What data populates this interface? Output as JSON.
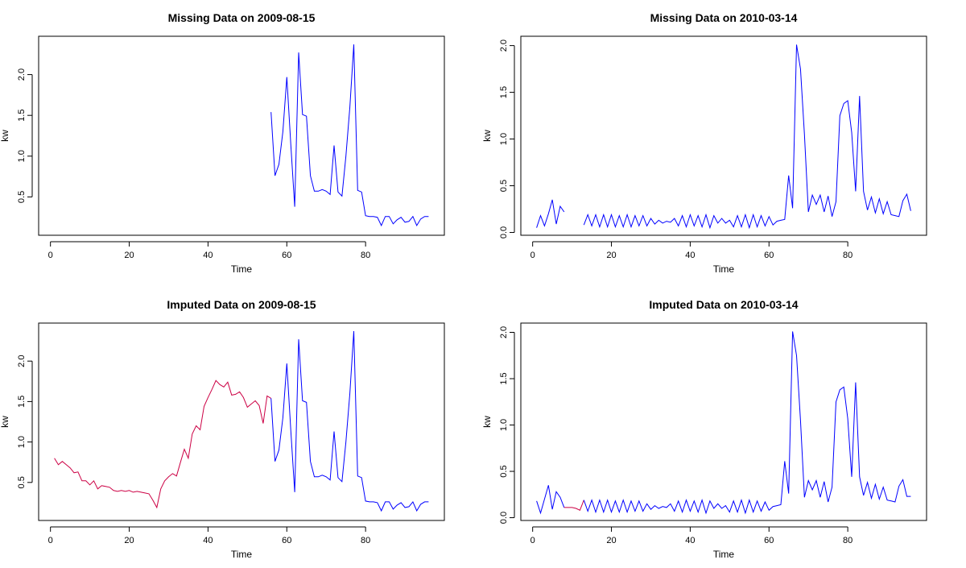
{
  "chart_data": [
    {
      "type": "line",
      "title": "Missing Data on 2009-08-15",
      "xlabel": "Time",
      "ylabel": "kw",
      "xlim": [
        -3,
        100
      ],
      "ylim": [
        0.03,
        2.47
      ],
      "xticks": [
        "0",
        "20",
        "40",
        "60",
        "80"
      ],
      "xtick_values": [
        0,
        20,
        40,
        60,
        80
      ],
      "yticks": [
        "0.5",
        "1.0",
        "1.5",
        "2.0"
      ],
      "ytick_values": [
        0.5,
        1.0,
        1.5,
        2.0
      ],
      "colors": {
        "observed": "#0000ff"
      },
      "series": [
        {
          "role": "observed",
          "x": [
            56,
            57,
            58,
            59,
            60,
            61,
            62,
            63,
            64,
            65,
            66,
            67,
            68,
            69,
            70,
            71,
            72,
            73,
            74,
            75,
            76,
            77,
            78,
            79,
            80,
            81,
            82,
            83,
            84,
            85,
            86,
            87,
            88,
            89,
            90,
            91,
            92,
            93,
            94,
            95,
            96
          ],
          "y": [
            1.54,
            0.76,
            0.9,
            1.3,
            1.97,
            1.15,
            0.38,
            2.27,
            1.51,
            1.49,
            0.76,
            0.57,
            0.57,
            0.59,
            0.57,
            0.53,
            1.13,
            0.56,
            0.51,
            1.0,
            1.6,
            2.37,
            0.58,
            0.56,
            0.27,
            0.26,
            0.26,
            0.25,
            0.15,
            0.26,
            0.26,
            0.17,
            0.22,
            0.25,
            0.19,
            0.2,
            0.26,
            0.15,
            0.23,
            0.26,
            0.26
          ]
        }
      ]
    },
    {
      "type": "line",
      "title": "Missing Data on 2010-03-14",
      "xlabel": "Time",
      "ylabel": "kw",
      "xlim": [
        -3,
        100
      ],
      "ylim": [
        -0.03,
        2.1
      ],
      "xticks": [
        "0",
        "20",
        "40",
        "60",
        "80"
      ],
      "xtick_values": [
        0,
        20,
        40,
        60,
        80
      ],
      "yticks": [
        "0.0",
        "0.5",
        "1.0",
        "1.5",
        "2.0"
      ],
      "ytick_values": [
        0,
        0.5,
        1.0,
        1.5,
        2.0
      ],
      "colors": {
        "observed": "#0000ff"
      },
      "series": [
        {
          "role": "observed",
          "x": [
            1,
            2,
            3,
            4,
            5,
            6,
            7,
            8
          ],
          "y": [
            0.05,
            0.18,
            0.07,
            0.2,
            0.35,
            0.09,
            0.28,
            0.22
          ]
        },
        {
          "role": "observed",
          "x": [
            13,
            14,
            15,
            16,
            17,
            18,
            19,
            20,
            21,
            22,
            23,
            24,
            25,
            26,
            27,
            28,
            29,
            30,
            31,
            32,
            33,
            34,
            35,
            36,
            37,
            38,
            39,
            40,
            41,
            42,
            43,
            44,
            45,
            46,
            47,
            48,
            49,
            50,
            51,
            52,
            53,
            54,
            55,
            56,
            57,
            58,
            59,
            60,
            61,
            62,
            63,
            64,
            65,
            66,
            67,
            68,
            69,
            70,
            71,
            72,
            73,
            74,
            75,
            76,
            77,
            78,
            79,
            80,
            81,
            82,
            83,
            84,
            85,
            86,
            87,
            88,
            89,
            90,
            91,
            92,
            93,
            94,
            95,
            96
          ],
          "y": [
            0.08,
            0.19,
            0.07,
            0.19,
            0.06,
            0.19,
            0.06,
            0.19,
            0.06,
            0.18,
            0.06,
            0.19,
            0.06,
            0.18,
            0.07,
            0.18,
            0.07,
            0.15,
            0.09,
            0.13,
            0.1,
            0.12,
            0.11,
            0.15,
            0.07,
            0.18,
            0.06,
            0.19,
            0.07,
            0.18,
            0.06,
            0.19,
            0.05,
            0.18,
            0.1,
            0.15,
            0.1,
            0.13,
            0.06,
            0.18,
            0.06,
            0.19,
            0.05,
            0.19,
            0.06,
            0.18,
            0.07,
            0.17,
            0.08,
            0.12,
            0.13,
            0.14,
            0.61,
            0.26,
            2.01,
            1.75,
            1.05,
            0.22,
            0.4,
            0.3,
            0.4,
            0.22,
            0.39,
            0.17,
            0.33,
            1.25,
            1.38,
            1.41,
            1.07,
            0.44,
            1.46,
            0.44,
            0.24,
            0.38,
            0.21,
            0.36,
            0.2,
            0.33,
            0.19,
            0.18,
            0.17,
            0.34,
            0.41,
            0.23
          ]
        }
      ]
    },
    {
      "type": "line",
      "title": "Imputed Data on 2009-08-15",
      "xlabel": "Time",
      "ylabel": "kw",
      "xlim": [
        -3,
        100
      ],
      "ylim": [
        0.03,
        2.47
      ],
      "xticks": [
        "0",
        "20",
        "40",
        "60",
        "80"
      ],
      "xtick_values": [
        0,
        20,
        40,
        60,
        80
      ],
      "yticks": [
        "0.5",
        "1.0",
        "1.5",
        "2.0"
      ],
      "ytick_values": [
        0.5,
        1.0,
        1.5,
        2.0
      ],
      "colors": {
        "imputed": "#cc0044",
        "observed": "#0000ff"
      },
      "series": [
        {
          "role": "imputed",
          "x": [
            1,
            2,
            3,
            4,
            5,
            6,
            7,
            8,
            9,
            10,
            11,
            12,
            13,
            14,
            15,
            16,
            17,
            18,
            19,
            20,
            21,
            22,
            23,
            24,
            25,
            26,
            27,
            28,
            29,
            30,
            31,
            32,
            33,
            34,
            35,
            36,
            37,
            38,
            39,
            40,
            41,
            42,
            43,
            44,
            45,
            46,
            47,
            48,
            49,
            50,
            51,
            52,
            53,
            54,
            55,
            56
          ],
          "y": [
            0.8,
            0.72,
            0.76,
            0.72,
            0.68,
            0.62,
            0.63,
            0.52,
            0.52,
            0.47,
            0.52,
            0.42,
            0.46,
            0.45,
            0.44,
            0.4,
            0.39,
            0.4,
            0.39,
            0.4,
            0.38,
            0.39,
            0.38,
            0.37,
            0.36,
            0.28,
            0.19,
            0.42,
            0.52,
            0.57,
            0.61,
            0.58,
            0.75,
            0.91,
            0.8,
            1.1,
            1.2,
            1.15,
            1.44,
            1.55,
            1.65,
            1.76,
            1.71,
            1.68,
            1.74,
            1.58,
            1.59,
            1.62,
            1.55,
            1.43,
            1.47,
            1.51,
            1.45,
            1.23,
            1.57,
            1.54
          ]
        },
        {
          "role": "observed",
          "x": [
            56,
            57,
            58,
            59,
            60,
            61,
            62,
            63,
            64,
            65,
            66,
            67,
            68,
            69,
            70,
            71,
            72,
            73,
            74,
            75,
            76,
            77,
            78,
            79,
            80,
            81,
            82,
            83,
            84,
            85,
            86,
            87,
            88,
            89,
            90,
            91,
            92,
            93,
            94,
            95,
            96
          ],
          "y": [
            1.54,
            0.76,
            0.9,
            1.3,
            1.97,
            1.15,
            0.38,
            2.27,
            1.51,
            1.49,
            0.76,
            0.57,
            0.57,
            0.59,
            0.57,
            0.53,
            1.13,
            0.56,
            0.51,
            1.0,
            1.6,
            2.37,
            0.58,
            0.56,
            0.27,
            0.26,
            0.26,
            0.25,
            0.15,
            0.26,
            0.26,
            0.17,
            0.22,
            0.25,
            0.19,
            0.2,
            0.26,
            0.15,
            0.23,
            0.26,
            0.26
          ]
        }
      ]
    },
    {
      "type": "line",
      "title": "Imputed Data on 2010-03-14",
      "xlabel": "Time",
      "ylabel": "kw",
      "xlim": [
        -3,
        100
      ],
      "ylim": [
        -0.03,
        2.1
      ],
      "xticks": [
        "0",
        "20",
        "40",
        "60",
        "80"
      ],
      "xtick_values": [
        0,
        20,
        40,
        60,
        80
      ],
      "yticks": [
        "0.0",
        "0.5",
        "1.0",
        "1.5",
        "2.0"
      ],
      "ytick_values": [
        0,
        0.5,
        1.0,
        1.5,
        2.0
      ],
      "colors": {
        "imputed": "#cc0044",
        "observed": "#0000ff"
      },
      "series": [
        {
          "role": "observed",
          "x": [
            1,
            2,
            3,
            4,
            5,
            6,
            7,
            8
          ],
          "y": [
            0.18,
            0.05,
            0.2,
            0.35,
            0.09,
            0.28,
            0.22,
            0.11
          ]
        },
        {
          "role": "imputed",
          "x": [
            8,
            9,
            10,
            11,
            12,
            13
          ],
          "y": [
            0.11,
            0.11,
            0.11,
            0.1,
            0.08,
            0.19
          ]
        },
        {
          "role": "observed",
          "x": [
            13,
            14,
            15,
            16,
            17,
            18,
            19,
            20,
            21,
            22,
            23,
            24,
            25,
            26,
            27,
            28,
            29,
            30,
            31,
            32,
            33,
            34,
            35,
            36,
            37,
            38,
            39,
            40,
            41,
            42,
            43,
            44,
            45,
            46,
            47,
            48,
            49,
            50,
            51,
            52,
            53,
            54,
            55,
            56,
            57,
            58,
            59,
            60,
            61,
            62,
            63,
            64,
            65,
            66,
            67,
            68,
            69,
            70,
            71,
            72,
            73,
            74,
            75,
            76,
            77,
            78,
            79,
            80,
            81,
            82,
            83,
            84,
            85,
            86,
            87,
            88,
            89,
            90,
            91,
            92,
            93,
            94,
            95,
            96
          ],
          "y": [
            0.19,
            0.07,
            0.19,
            0.06,
            0.19,
            0.06,
            0.19,
            0.06,
            0.18,
            0.06,
            0.19,
            0.06,
            0.18,
            0.07,
            0.18,
            0.07,
            0.15,
            0.09,
            0.13,
            0.1,
            0.12,
            0.11,
            0.15,
            0.07,
            0.18,
            0.06,
            0.19,
            0.07,
            0.18,
            0.06,
            0.19,
            0.05,
            0.18,
            0.1,
            0.15,
            0.1,
            0.13,
            0.06,
            0.18,
            0.06,
            0.19,
            0.05,
            0.19,
            0.06,
            0.18,
            0.07,
            0.17,
            0.08,
            0.12,
            0.13,
            0.14,
            0.61,
            0.26,
            2.01,
            1.75,
            1.05,
            0.22,
            0.4,
            0.3,
            0.4,
            0.22,
            0.39,
            0.17,
            0.33,
            1.25,
            1.38,
            1.41,
            1.07,
            0.44,
            1.46,
            0.44,
            0.24,
            0.38,
            0.21,
            0.36,
            0.2,
            0.33,
            0.19,
            0.18,
            0.17,
            0.34,
            0.41,
            0.23,
            0.23
          ]
        }
      ]
    }
  ]
}
